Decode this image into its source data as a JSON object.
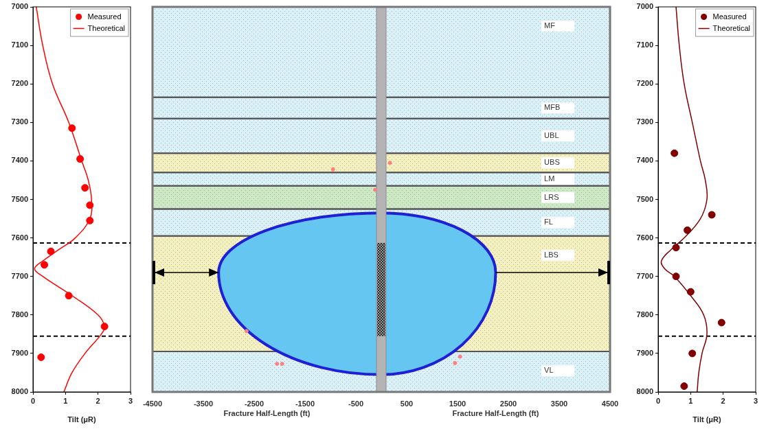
{
  "chart_data": [
    {
      "type": "scatter",
      "xlabel": "Tilt (μR)",
      "xlim": [
        0,
        3
      ],
      "xticks": [
        0,
        1,
        2,
        3
      ],
      "ylim": [
        8000,
        7000
      ],
      "yticks": [
        7000,
        7100,
        7200,
        7300,
        7400,
        7500,
        7600,
        7700,
        7800,
        7900,
        8000
      ],
      "grid": false,
      "legend": "upper right",
      "reference_lines": [
        7613,
        7855
      ],
      "series": [
        {
          "name": "Measured",
          "type": "scatter",
          "marker": "circle",
          "color": "#ff0000",
          "values": [
            [
              1.2,
              7315
            ],
            [
              1.45,
              7395
            ],
            [
              1.6,
              7470
            ],
            [
              1.75,
              7515
            ],
            [
              1.75,
              7555
            ],
            [
              0.55,
              7635
            ],
            [
              0.35,
              7670
            ],
            [
              1.1,
              7750
            ],
            [
              2.2,
              7830
            ],
            [
              0.25,
              7910
            ]
          ]
        },
        {
          "name": "Theoretical",
          "type": "line",
          "line_style": "solid",
          "color": "#ff0000",
          "values": [
            [
              0.1,
              7000
            ],
            [
              0.3,
              7100
            ],
            [
              0.6,
              7200
            ],
            [
              1.1,
              7300
            ],
            [
              1.5,
              7400
            ],
            [
              1.7,
              7450
            ],
            [
              1.8,
              7500
            ],
            [
              1.75,
              7550
            ],
            [
              1.3,
              7600
            ],
            [
              0.8,
              7630
            ],
            [
              0.3,
              7660
            ],
            [
              0.05,
              7680
            ],
            [
              0.3,
              7700
            ],
            [
              1.2,
              7750
            ],
            [
              2.0,
              7800
            ],
            [
              2.2,
              7830
            ],
            [
              2.1,
              7850
            ],
            [
              1.6,
              7900
            ],
            [
              1.2,
              7950
            ],
            [
              0.95,
              8000
            ]
          ]
        }
      ]
    },
    {
      "type": "fracture_profile",
      "xlabels": [
        "Fracture Half-Length (ft)",
        "Fracture Half-Length (ft)"
      ],
      "xlim": [
        -4500,
        4500
      ],
      "xticks": [
        -4500,
        -3500,
        -2500,
        -1500,
        -500,
        500,
        1500,
        2500,
        3500,
        4500
      ],
      "ylim": [
        8000,
        7000
      ],
      "tick_labels": "x",
      "layers": [
        {
          "name": "MF",
          "top": 7000,
          "bottom": 7235,
          "color": "#dcf0f8"
        },
        {
          "name": "MFB",
          "top": 7235,
          "bottom": 7290,
          "color": "#dcf0f8"
        },
        {
          "name": "UBL",
          "top": 7290,
          "bottom": 7380,
          "color": "#dcf0f8"
        },
        {
          "name": "UBS",
          "top": 7380,
          "bottom": 7430,
          "color": "#f6efbe"
        },
        {
          "name": "LM",
          "top": 7430,
          "bottom": 7465,
          "color": "#dcf0f8"
        },
        {
          "name": "LRS",
          "top": 7465,
          "bottom": 7525,
          "color": "#cfe8c4"
        },
        {
          "name": "FL",
          "top": 7525,
          "bottom": 7595,
          "color": "#dcf0f8"
        },
        {
          "name": "LBS",
          "top": 7595,
          "bottom": 7895,
          "color": "#f6efbe"
        },
        {
          "name": "VL",
          "top": 7895,
          "bottom": 8000,
          "color": "#dcf0f8"
        }
      ],
      "perforation": [
        7613,
        7855
      ],
      "fracture": {
        "left_half_length": 3200,
        "right_half_length": 2250,
        "top": 7535,
        "bottom": 7955,
        "widest_depth": 7690,
        "color": "#66c6f2"
      },
      "microseismic": {
        "color": "#ff8080",
        "values": [
          [
            -950,
            7422
          ],
          [
            170,
            7405
          ],
          [
            -120,
            7475
          ],
          [
            -2650,
            7842
          ],
          [
            -2050,
            7927
          ],
          [
            -1950,
            7927
          ],
          [
            1550,
            7908
          ],
          [
            1450,
            7925
          ]
        ]
      }
    },
    {
      "type": "scatter",
      "xlabel": "Tilt (μR)",
      "xlim": [
        0,
        3
      ],
      "xticks": [
        0,
        1,
        2,
        3
      ],
      "ylim": [
        8000,
        7000
      ],
      "yticks": [
        7000,
        7100,
        7200,
        7300,
        7400,
        7500,
        7600,
        7700,
        7800,
        7900,
        8000
      ],
      "grid": false,
      "legend": "upper right",
      "reference_lines": [
        7613,
        7855
      ],
      "series": [
        {
          "name": "Measured",
          "type": "scatter",
          "marker": "circle",
          "color": "#800000",
          "values": [
            [
              0.5,
              7380
            ],
            [
              1.65,
              7540
            ],
            [
              0.9,
              7580
            ],
            [
              0.55,
              7625
            ],
            [
              0.55,
              7700
            ],
            [
              1.0,
              7740
            ],
            [
              1.95,
              7820
            ],
            [
              1.05,
              7900
            ],
            [
              0.8,
              7985
            ]
          ]
        },
        {
          "name": "Theoretical",
          "type": "line",
          "line_style": "solid",
          "color": "#800000",
          "values": [
            [
              0.55,
              7000
            ],
            [
              0.65,
              7100
            ],
            [
              0.8,
              7200
            ],
            [
              1.05,
              7300
            ],
            [
              1.3,
              7400
            ],
            [
              1.45,
              7450
            ],
            [
              1.5,
              7500
            ],
            [
              1.3,
              7550
            ],
            [
              0.8,
              7600
            ],
            [
              0.4,
              7630
            ],
            [
              0.1,
              7660
            ],
            [
              0.2,
              7680
            ],
            [
              0.5,
              7700
            ],
            [
              1.0,
              7750
            ],
            [
              1.4,
              7800
            ],
            [
              1.5,
              7850
            ],
            [
              1.35,
              7900
            ],
            [
              1.25,
              7950
            ],
            [
              1.2,
              8000
            ]
          ]
        }
      ]
    }
  ]
}
